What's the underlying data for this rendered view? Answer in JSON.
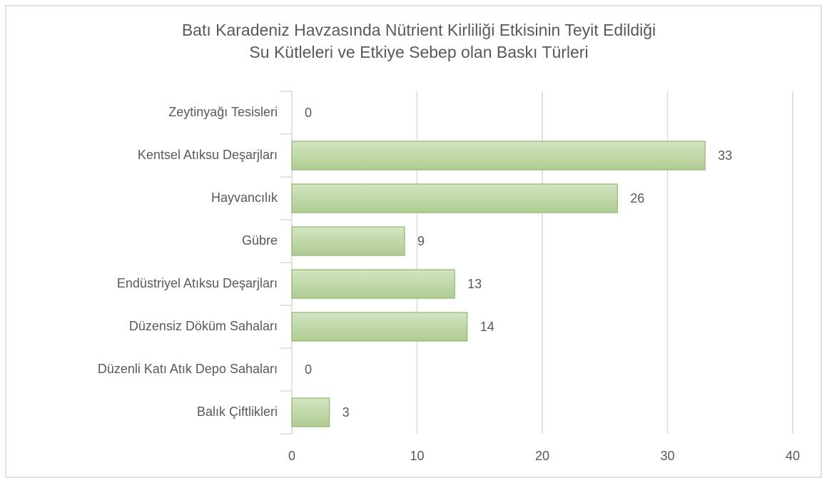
{
  "chart_data": {
    "type": "bar",
    "orientation": "horizontal",
    "title": [
      "Batı Karadeniz Havzasında Nütrient Kirliliği Etkisinin Teyit Edildiği",
      "Su Kütleleri ve Etkiye Sebep olan Baskı Türleri"
    ],
    "categories": [
      "Zeytinyağı Tesisleri",
      "Kentsel Atıksu Deşarjları",
      "Hayvancılık",
      "Gübre",
      "Endüstriyel Atıksu Deşarjları",
      "Düzensiz Döküm Sahaları",
      "Düzenli Katı Atık Depo Sahaları",
      "Balık Çiftlikleri"
    ],
    "values": [
      0,
      33,
      26,
      9,
      13,
      14,
      0,
      3
    ],
    "color": "#b8d39c",
    "xlim": [
      0,
      40
    ],
    "xticks": [
      0,
      10,
      20,
      30,
      40
    ],
    "grid": true
  }
}
